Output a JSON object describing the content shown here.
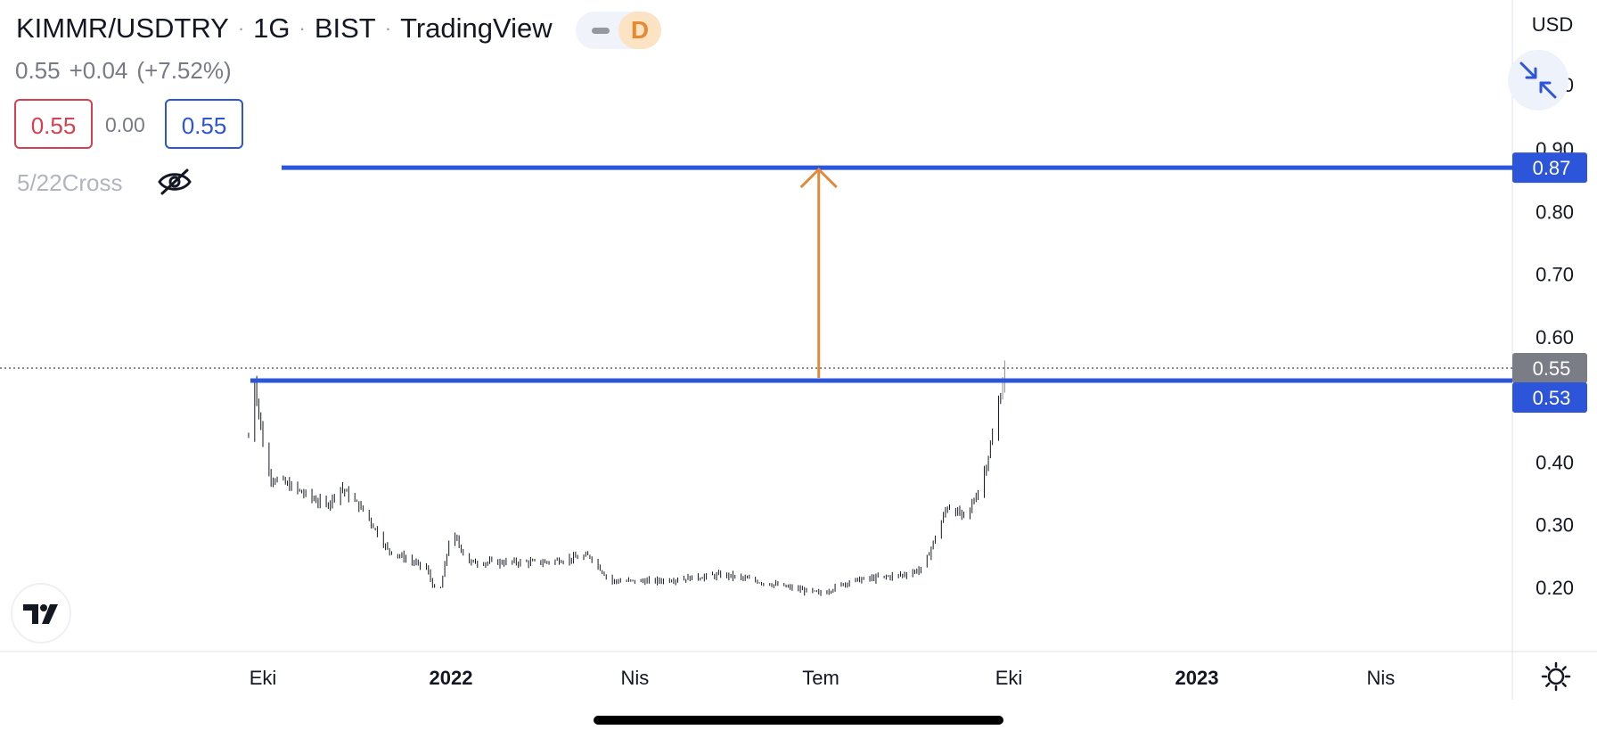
{
  "header": {
    "symbol": "KIMMR/USDTRY",
    "interval": "1G",
    "exchange": "BIST",
    "source": "TradingView",
    "badge_letter": "D"
  },
  "quote": {
    "last": "0.55",
    "change": "+0.04",
    "change_pct": "(+7.52%)",
    "sell": "0.55",
    "spread": "0.00",
    "buy": "0.55"
  },
  "indicator": {
    "name": "5/22Cross",
    "visibility_icon": "eye-off-icon"
  },
  "colors": {
    "level_line": "#2c55d9",
    "arrow": "#e08a3c",
    "candle": "#131722",
    "last_price_tag": "#7a7d85"
  },
  "chart_data": {
    "type": "candlestick",
    "y_axis": {
      "currency_label": "USD",
      "ticks": [
        "0.20",
        "0.30",
        "0.40",
        "0.60",
        "0.70",
        "0.80",
        "0.90"
      ],
      "partial_top_tick": "0",
      "range": [
        0.15,
        1.03
      ]
    },
    "x_axis": {
      "ticks": [
        {
          "label": "Eki",
          "date": "2021-10-01",
          "bold": false
        },
        {
          "label": "2022",
          "date": "2022-01-01",
          "bold": true
        },
        {
          "label": "Nis",
          "date": "2022-04-01",
          "bold": false
        },
        {
          "label": "Tem",
          "date": "2022-07-01",
          "bold": false
        },
        {
          "label": "Eki",
          "date": "2022-10-01",
          "bold": false
        },
        {
          "label": "2023",
          "date": "2023-01-01",
          "bold": true
        },
        {
          "label": "Nis",
          "date": "2023-04-01",
          "bold": false
        }
      ]
    },
    "price_trend": [
      [
        "2021-09-24",
        0.44
      ],
      [
        "2021-09-27",
        0.53
      ],
      [
        "2021-10-03",
        0.38
      ],
      [
        "2021-10-15",
        0.36
      ],
      [
        "2021-11-01",
        0.33
      ],
      [
        "2021-11-08",
        0.36
      ],
      [
        "2021-11-20",
        0.32
      ],
      [
        "2021-12-01",
        0.26
      ],
      [
        "2021-12-20",
        0.23
      ],
      [
        "2021-12-26",
        0.18
      ],
      [
        "2022-01-01",
        0.29
      ],
      [
        "2022-01-10",
        0.24
      ],
      [
        "2022-02-15",
        0.24
      ],
      [
        "2022-03-10",
        0.25
      ],
      [
        "2022-03-20",
        0.21
      ],
      [
        "2022-04-10",
        0.21
      ],
      [
        "2022-05-15",
        0.22
      ],
      [
        "2022-06-15",
        0.2
      ],
      [
        "2022-07-01",
        0.19
      ],
      [
        "2022-07-15",
        0.21
      ],
      [
        "2022-08-10",
        0.22
      ],
      [
        "2022-08-20",
        0.23
      ],
      [
        "2022-09-01",
        0.33
      ],
      [
        "2022-09-10",
        0.31
      ],
      [
        "2022-09-18",
        0.37
      ],
      [
        "2022-09-23",
        0.44
      ],
      [
        "2022-09-27",
        0.51
      ],
      [
        "2022-09-29",
        0.55
      ]
    ],
    "levels": [
      {
        "value": 0.87,
        "label": "0.87"
      },
      {
        "value": 0.53,
        "label": "0.53"
      }
    ],
    "last_price": {
      "value": 0.55,
      "label": "0.55"
    },
    "arrow": {
      "date": "2022-06-30",
      "from": 0.53,
      "to": 0.87
    }
  }
}
